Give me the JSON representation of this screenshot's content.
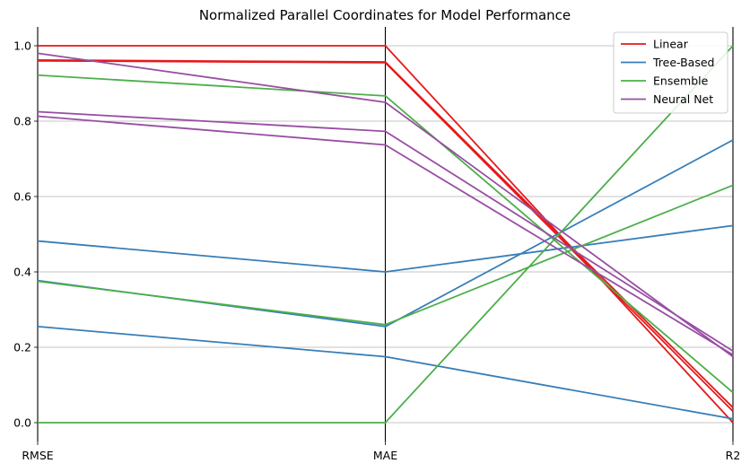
{
  "chart_data": {
    "type": "line",
    "subtype": "parallel-coordinates",
    "title": "Normalized Parallel Coordinates for Model Performance",
    "categories": [
      "RMSE",
      "MAE",
      "R2"
    ],
    "ylim": [
      -0.05,
      1.05
    ],
    "yticks": [
      "0.0",
      "0.2",
      "0.4",
      "0.6",
      "0.8",
      "1.0"
    ],
    "ytick_values": [
      0.0,
      0.2,
      0.4,
      0.6,
      0.8,
      1.0
    ],
    "grid": true,
    "legend_position": "top-right",
    "legend": [
      {
        "name": "Linear",
        "color": "#e41a1c"
      },
      {
        "name": "Tree-Based",
        "color": "#377eb8"
      },
      {
        "name": "Ensemble",
        "color": "#4daf4a"
      },
      {
        "name": "Neural Net",
        "color": "#984ea3"
      }
    ],
    "series": [
      {
        "name": "Linear",
        "color": "#e41a1c",
        "values": [
          1.0,
          1.0,
          0.0
        ]
      },
      {
        "name": "Linear",
        "color": "#e41a1c",
        "values": [
          0.962,
          0.957,
          0.04
        ]
      },
      {
        "name": "Linear",
        "color": "#e41a1c",
        "values": [
          0.96,
          0.955,
          0.03
        ]
      },
      {
        "name": "Tree-Based",
        "color": "#377eb8",
        "values": [
          0.482,
          0.4,
          0.523
        ]
      },
      {
        "name": "Tree-Based",
        "color": "#377eb8",
        "values": [
          0.377,
          0.255,
          0.75
        ]
      },
      {
        "name": "Tree-Based",
        "color": "#377eb8",
        "values": [
          0.255,
          0.175,
          0.01
        ]
      },
      {
        "name": "Ensemble",
        "color": "#4daf4a",
        "values": [
          0.922,
          0.867,
          0.08
        ]
      },
      {
        "name": "Ensemble",
        "color": "#4daf4a",
        "values": [
          0.375,
          0.26,
          0.63
        ]
      },
      {
        "name": "Ensemble",
        "color": "#4daf4a",
        "values": [
          0.0,
          0.0,
          1.0
        ]
      },
      {
        "name": "Neural Net",
        "color": "#984ea3",
        "values": [
          0.98,
          0.85,
          0.175
        ]
      },
      {
        "name": "Neural Net",
        "color": "#984ea3",
        "values": [
          0.825,
          0.773,
          0.19
        ]
      },
      {
        "name": "Neural Net",
        "color": "#984ea3",
        "values": [
          0.813,
          0.737,
          0.18
        ]
      }
    ]
  }
}
